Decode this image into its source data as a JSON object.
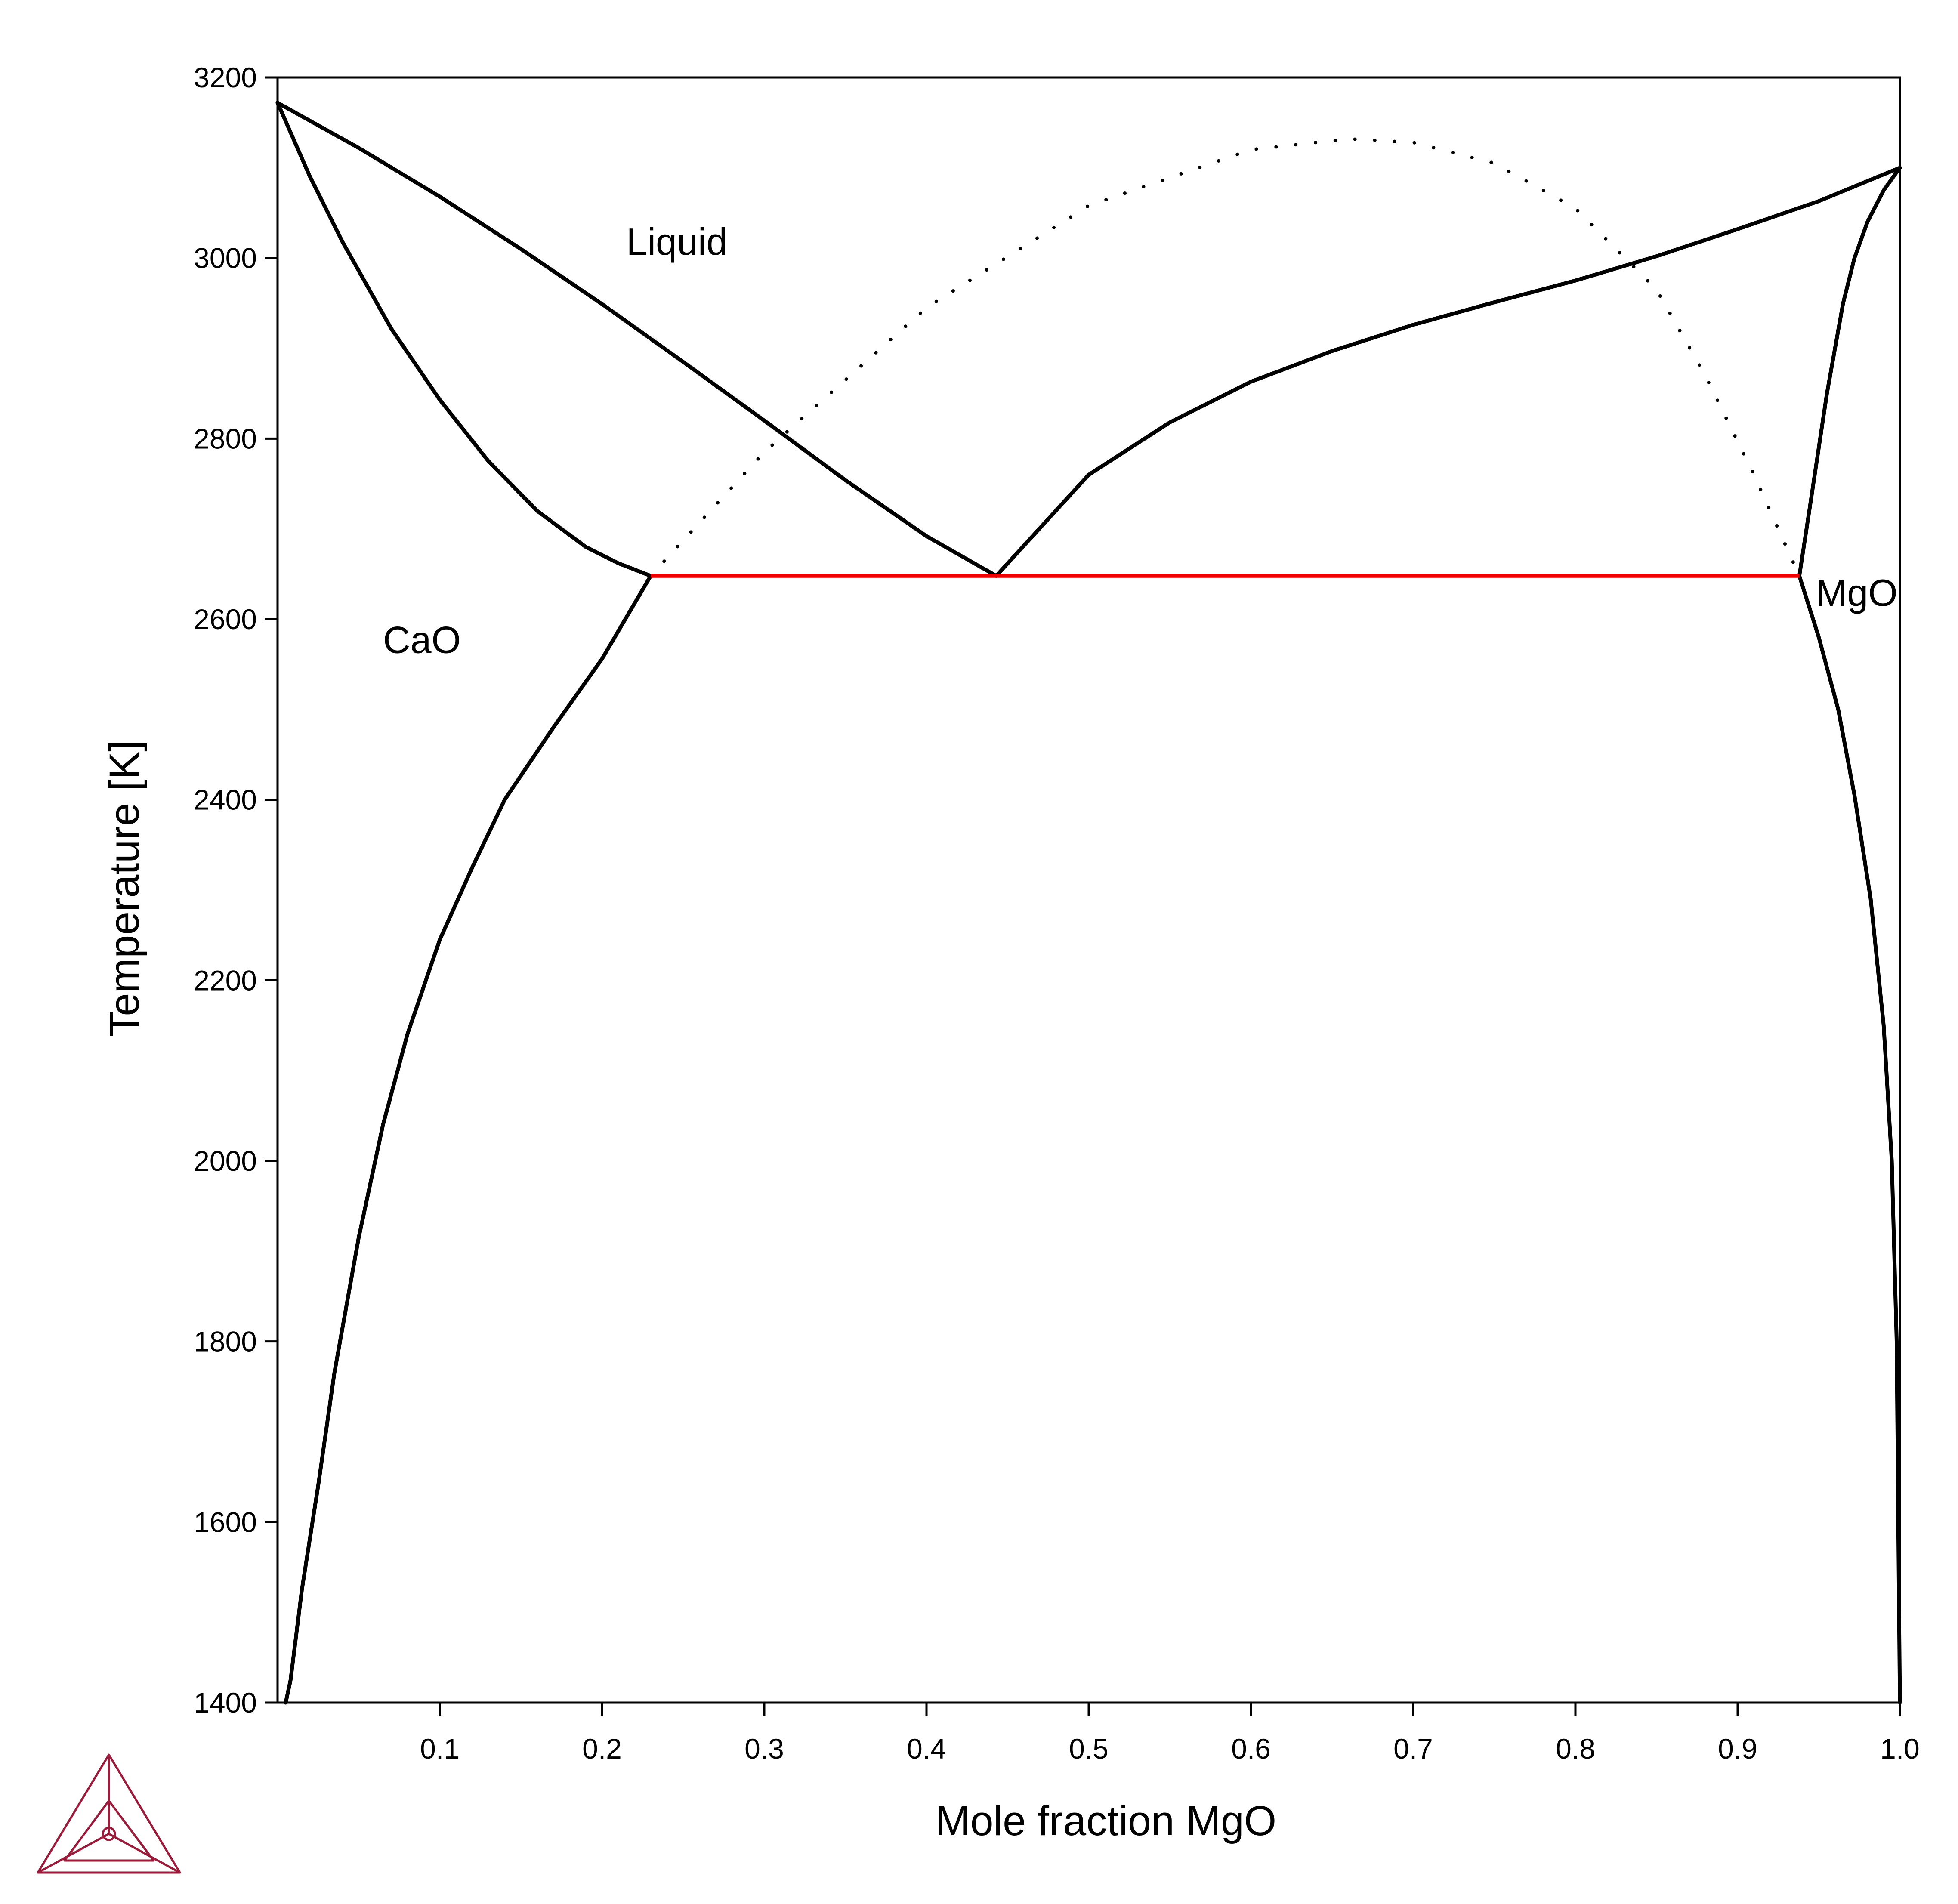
{
  "chart_data": {
    "type": "line",
    "xlabel": "Mole fraction MgO",
    "ylabel": "Temperature [K]",
    "xlim": [
      0,
      1
    ],
    "ylim": [
      1400,
      3200
    ],
    "x_ticks": [
      0.1,
      0.2,
      0.3,
      0.4,
      0.5,
      0.6,
      0.7,
      0.8,
      0.9,
      1.0
    ],
    "x_tick_labels": [
      "0.1",
      "0.2",
      "0.3",
      "0.4",
      "0.5",
      "0.6",
      "0.7",
      "0.8",
      "0.9",
      "1.0"
    ],
    "y_ticks": [
      1400,
      1600,
      1800,
      2000,
      2200,
      2400,
      2600,
      2800,
      3000,
      3200
    ],
    "y_tick_labels": [
      "1400",
      "1600",
      "1800",
      "2000",
      "2200",
      "2400",
      "2600",
      "2800",
      "3000",
      "3200"
    ],
    "grid": false,
    "series": [
      {
        "style": "solid",
        "color": "#000000",
        "x": [
          0.0,
          0.05,
          0.1,
          0.15,
          0.2,
          0.25,
          0.3,
          0.35,
          0.4,
          0.443
        ],
        "y": [
          3172,
          3122,
          3068,
          3010,
          2949,
          2885,
          2820,
          2754,
          2692,
          2648
        ]
      },
      {
        "style": "solid",
        "color": "#000000",
        "x": [
          0.0,
          0.02,
          0.04,
          0.07,
          0.1,
          0.13,
          0.16,
          0.19,
          0.21,
          0.23
        ],
        "y": [
          3172,
          3090,
          3018,
          2922,
          2843,
          2775,
          2720,
          2680,
          2662,
          2648
        ]
      },
      {
        "style": "solid",
        "color": "#000000",
        "x": [
          0.23,
          0.2,
          0.17,
          0.14,
          0.12,
          0.1,
          0.08,
          0.065,
          0.05,
          0.035,
          0.025,
          0.015,
          0.008,
          0.005
        ],
        "y": [
          2648,
          2556,
          2480,
          2400,
          2325,
          2245,
          2140,
          2040,
          1915,
          1765,
          1640,
          1525,
          1425,
          1400
        ]
      },
      {
        "style": "solid",
        "color": "#000000",
        "x": [
          0.443,
          0.5,
          0.55,
          0.6,
          0.65,
          0.7,
          0.75,
          0.8,
          0.85,
          0.9,
          0.95,
          1.0
        ],
        "y": [
          2648,
          2760,
          2818,
          2863,
          2897,
          2926,
          2951,
          2975,
          3002,
          3032,
          3063,
          3100
        ]
      },
      {
        "style": "solid",
        "color": "#000000",
        "x": [
          1.0,
          0.99,
          0.98,
          0.972,
          0.965,
          0.955,
          0.945,
          0.938
        ],
        "y": [
          3100,
          3075,
          3040,
          3000,
          2950,
          2850,
          2730,
          2648
        ]
      },
      {
        "style": "solid",
        "color": "#000000",
        "x": [
          0.938,
          0.95,
          0.962,
          0.972,
          0.982,
          0.99,
          0.995,
          0.998,
          0.999,
          1.0
        ],
        "y": [
          2648,
          2580,
          2500,
          2405,
          2290,
          2150,
          2000,
          1800,
          1600,
          1400
        ]
      },
      {
        "style": "dotted",
        "color": "#000000",
        "x": [
          0.23,
          0.3,
          0.4,
          0.5,
          0.6,
          0.66,
          0.7,
          0.75,
          0.8,
          0.85,
          0.88,
          0.91,
          0.938
        ],
        "y": [
          2648,
          2785,
          2945,
          3058,
          3120,
          3132,
          3128,
          3105,
          3055,
          2965,
          2870,
          2760,
          2648
        ]
      },
      {
        "style": "solid",
        "color": "#ee0000",
        "x": [
          0.23,
          0.938
        ],
        "y": [
          2648,
          2648
        ]
      }
    ],
    "annotations": [
      {
        "text": "Liquid",
        "x": 0.215,
        "y": 3018
      },
      {
        "text": "CaO",
        "x": 0.065,
        "y": 2577
      },
      {
        "text": "MgO",
        "x": 0.948,
        "y": 2629
      }
    ]
  }
}
